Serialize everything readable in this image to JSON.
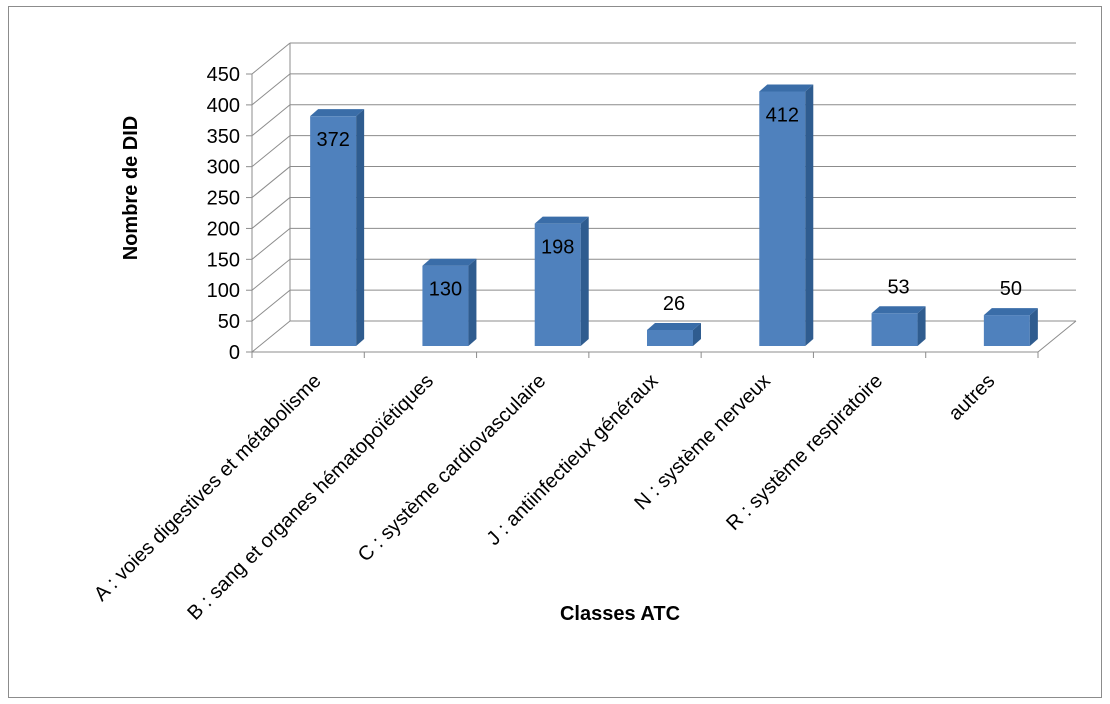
{
  "chart_data": {
    "type": "bar",
    "style": "3d-clustered-column",
    "categories": [
      "A : voies digestives et métabolisme",
      "B : sang et organes hématopoïétiques",
      "C : système cardiovasculaire",
      "J : antiinfectieux généraux",
      "N : système nerveux",
      "R : système respiratoire",
      "autres"
    ],
    "values": [
      372,
      130,
      198,
      26,
      412,
      53,
      50
    ],
    "data_labels": [
      "372",
      "130",
      "198",
      "26",
      "412",
      "53",
      "50"
    ],
    "xlabel": "Classes ATC",
    "ylabel": "Nombre de DID",
    "ylim": [
      0,
      450
    ],
    "yticks": [
      0,
      50,
      100,
      150,
      200,
      250,
      300,
      350,
      400,
      450
    ],
    "grid": true,
    "legend": "none",
    "colors": {
      "bar_front": "#4F81BD",
      "bar_side": "#2F5C8F",
      "bar_top": "#3A6DA8",
      "gridline": "#8c8c8c",
      "frame": "#8c8c8c"
    }
  }
}
